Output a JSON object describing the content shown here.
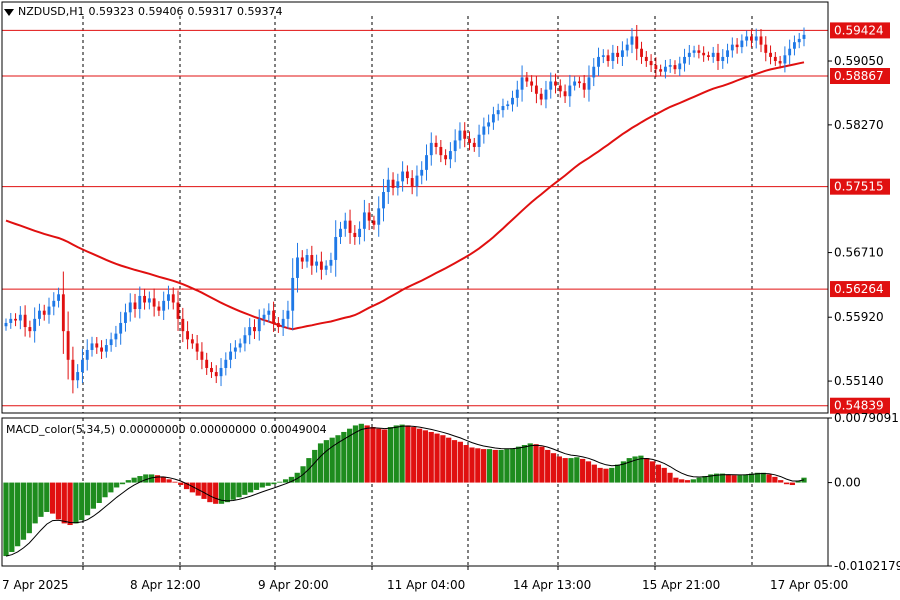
{
  "header": {
    "symbol": "NZDUSD,H1",
    "ohlc": [
      "0.59323",
      "0.59406",
      "0.59317",
      "0.59374"
    ]
  },
  "colors": {
    "bull": "#1e78e6",
    "bear": "#e01010",
    "ma": "#e01010",
    "level": "#e01010",
    "hist_up": "#1e8c1e",
    "hist_down": "#e01010",
    "grid": "#000000",
    "signal": "#000000",
    "label_bg": "#e01010",
    "label_text": "#ffffff"
  },
  "price_axis": {
    "ticks": [
      "0.59050",
      "0.58270",
      "0.56710",
      "0.55920",
      "0.55140"
    ],
    "levels": [
      "0.59424",
      "0.58867",
      "0.57515",
      "0.56264",
      "0.54839"
    ]
  },
  "macd": {
    "name": "MACD_color(5,34,5)",
    "values": [
      "0.00000000",
      "0.00000000",
      "0.00049004"
    ],
    "ticks": [
      "0.0079091",
      "0.00",
      "-0.0102179"
    ]
  },
  "time_axis": {
    "labels": [
      "7 Apr 2025",
      "8 Apr 12:00",
      "9 Apr 20:00",
      "11 Apr 04:00",
      "14 Apr 13:00",
      "15 Apr 21:00",
      "17 Apr 05:00"
    ]
  },
  "chart_data": [
    {
      "type": "candlestick",
      "title": "NZDUSD,H1",
      "ylim": [
        0.5475,
        0.596
      ],
      "grid": "vertical dashed lines at time labels",
      "ma_period_label": "",
      "closes": [
        0.5585,
        0.559,
        0.5588,
        0.5595,
        0.558,
        0.5575,
        0.559,
        0.56,
        0.5595,
        0.5605,
        0.5612,
        0.562,
        0.5575,
        0.554,
        0.5515,
        0.5525,
        0.554,
        0.5552,
        0.556,
        0.5555,
        0.555,
        0.5558,
        0.5565,
        0.5572,
        0.5585,
        0.5598,
        0.561,
        0.5602,
        0.5618,
        0.561,
        0.5615,
        0.5605,
        0.56,
        0.5612,
        0.562,
        0.561,
        0.559,
        0.5575,
        0.5565,
        0.556,
        0.555,
        0.554,
        0.553,
        0.5525,
        0.552,
        0.553,
        0.554,
        0.555,
        0.5555,
        0.556,
        0.557,
        0.558,
        0.5575,
        0.559,
        0.5595,
        0.56,
        0.5585,
        0.558,
        0.559,
        0.56,
        0.564,
        0.5665,
        0.566,
        0.5668,
        0.5655,
        0.566,
        0.565,
        0.5655,
        0.5662,
        0.569,
        0.57,
        0.571,
        0.5695,
        0.569,
        0.57,
        0.572,
        0.571,
        0.5705,
        0.5725,
        0.5745,
        0.576,
        0.575,
        0.5758,
        0.577,
        0.5762,
        0.5752,
        0.5765,
        0.5772,
        0.579,
        0.5805,
        0.58,
        0.579,
        0.5785,
        0.5795,
        0.5808,
        0.582,
        0.581,
        0.5805,
        0.58,
        0.5815,
        0.5825,
        0.583,
        0.584,
        0.5845,
        0.585,
        0.5852,
        0.586,
        0.587,
        0.5885,
        0.588,
        0.5875,
        0.5865,
        0.5858,
        0.587,
        0.588,
        0.5875,
        0.5868,
        0.5862,
        0.5875,
        0.588,
        0.5878,
        0.587,
        0.5885,
        0.5898,
        0.591,
        0.5912,
        0.5905,
        0.5915,
        0.591,
        0.5918,
        0.5925,
        0.5935,
        0.592,
        0.591,
        0.5905,
        0.59,
        0.5895,
        0.5892,
        0.5898,
        0.59,
        0.5895,
        0.5902,
        0.591,
        0.5915,
        0.5918,
        0.5915,
        0.5912,
        0.591,
        0.5915,
        0.5905,
        0.591,
        0.5918,
        0.5925,
        0.5922,
        0.593,
        0.5935,
        0.593,
        0.5935,
        0.5925,
        0.5915,
        0.591,
        0.5905,
        0.5902,
        0.5912,
        0.592,
        0.5928,
        0.5932,
        0.5937
      ]
    },
    {
      "type": "histogram",
      "title": "MACD_color(5,34,5)",
      "ylim": [
        -0.0102179,
        0.0079091
      ],
      "values": [
        -0.009,
        -0.0085,
        -0.0078,
        -0.007,
        -0.0062,
        -0.005,
        -0.0042,
        -0.0036,
        -0.0038,
        -0.0045,
        -0.005,
        -0.0052,
        -0.005,
        -0.0046,
        -0.004,
        -0.0032,
        -0.0025,
        -0.0018,
        -0.0012,
        -0.0006,
        -0.0002,
        0.0003,
        0.0006,
        0.0008,
        0.001,
        0.001,
        0.0009,
        0.0007,
        0.0004,
        0.0001,
        -0.0003,
        -0.0008,
        -0.0012,
        -0.0016,
        -0.002,
        -0.0024,
        -0.0026,
        -0.0026,
        -0.0024,
        -0.0021,
        -0.0018,
        -0.0015,
        -0.0012,
        -0.0009,
        -0.0006,
        -0.0004,
        -0.0002,
        0.0001,
        0.0004,
        0.0007,
        0.0012,
        0.002,
        0.003,
        0.004,
        0.0048,
        0.0052,
        0.0055,
        0.0058,
        0.0062,
        0.0066,
        0.007,
        0.0072,
        0.007,
        0.0068,
        0.0066,
        0.0065,
        0.0068,
        0.007,
        0.0071,
        0.007,
        0.0068,
        0.0066,
        0.0064,
        0.0062,
        0.006,
        0.0058,
        0.0055,
        0.0052,
        0.005,
        0.0046,
        0.0043,
        0.0042,
        0.0041,
        0.0041,
        0.004,
        0.004,
        0.0041,
        0.0042,
        0.0044,
        0.0046,
        0.0048,
        0.0047,
        0.0044,
        0.004,
        0.0036,
        0.0032,
        0.003,
        0.003,
        0.0031,
        0.0029,
        0.0026,
        0.0022,
        0.0018,
        0.0017,
        0.0018,
        0.0022,
        0.0026,
        0.003,
        0.0032,
        0.0033,
        0.003,
        0.0026,
        0.0022,
        0.0018,
        0.0012,
        0.0006,
        0.0004,
        0.0003,
        0.0004,
        0.0006,
        0.0008,
        0.001,
        0.0011,
        0.0011,
        0.001,
        0.0009,
        0.0009,
        0.001,
        0.0011,
        0.0012,
        0.0012,
        0.001,
        0.0007,
        0.0003,
        -0.0002,
        -0.0003,
        0.0002,
        0.0006
      ]
    }
  ]
}
